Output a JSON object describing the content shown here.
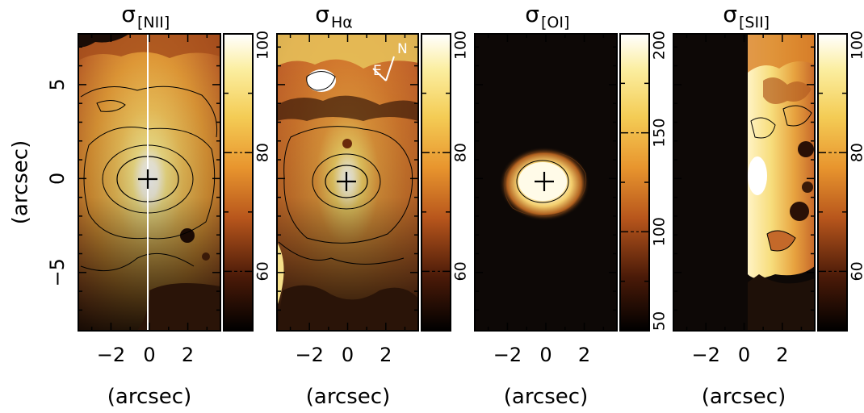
{
  "figure": {
    "y_axis_label": "(arcsec)",
    "y_ticks": [
      "5",
      "0",
      "−5"
    ],
    "y_tick_values": [
      5,
      0,
      -5
    ],
    "x_ticks": [
      "−2",
      "0",
      "2"
    ],
    "x_tick_values": [
      -2,
      0,
      2
    ],
    "x_range": [
      -3.7,
      3.7
    ],
    "y_range": [
      -8.1,
      7.7
    ],
    "panels": [
      {
        "title_symbol": "σ",
        "title_sub": "[NII]",
        "x_axis_label": "(arcsec)",
        "colorbar_labels": [
          "100",
          "80",
          "60"
        ],
        "colorbar_label_values": [
          100,
          80,
          60
        ],
        "colorbar_range": [
          50,
          100
        ],
        "has_slit_line": true
      },
      {
        "title_symbol": "σ",
        "title_sub": "Hα",
        "x_axis_label": "(arcsec)",
        "colorbar_labels": [
          "100",
          "80",
          "60"
        ],
        "colorbar_label_values": [
          100,
          80,
          60
        ],
        "colorbar_range": [
          50,
          100
        ],
        "compass": {
          "north": "N",
          "east": "E"
        }
      },
      {
        "title_symbol": "σ",
        "title_sub": "[OI]",
        "x_axis_label": "(arcsec)",
        "colorbar_labels": [
          "200",
          "150",
          "100",
          "50"
        ],
        "colorbar_label_values": [
          200,
          150,
          100,
          50
        ],
        "colorbar_range": [
          50,
          200
        ]
      },
      {
        "title_symbol": "σ",
        "title_sub": "[SII]",
        "x_axis_label": "(arcsec)",
        "colorbar_labels": [
          "100",
          "80",
          "60"
        ],
        "colorbar_label_values": [
          100,
          80,
          60
        ],
        "colorbar_range": [
          50,
          100
        ]
      }
    ],
    "colors": {
      "map_dark": "#1a0f08",
      "map_orange": "#d9822b",
      "map_yellow": "#f5d66a",
      "map_white": "#fffbe8",
      "background": "#0d0806"
    }
  }
}
